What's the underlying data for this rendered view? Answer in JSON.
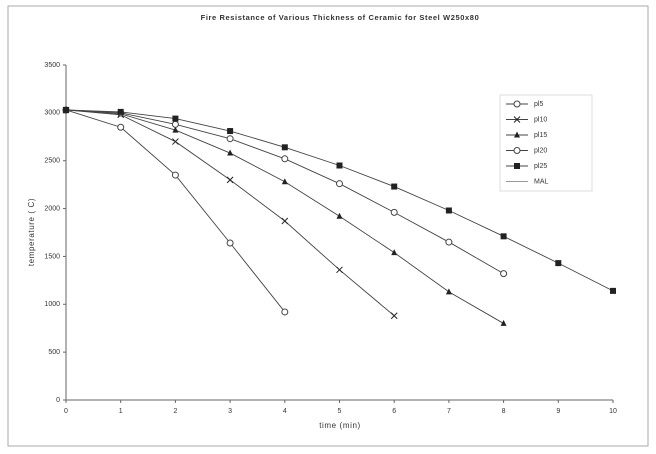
{
  "chart_data": {
    "type": "line",
    "title": "Fire Resistance of Various Thickness of Ceramic for Steel W250x80",
    "x_label": "time (min)",
    "y_label": "temperature ( C)",
    "x": [
      0,
      1,
      2,
      3,
      4,
      5,
      6,
      7,
      8,
      9,
      10
    ],
    "xlim": [
      0,
      10
    ],
    "xticks": [
      0,
      1,
      2,
      3,
      4,
      5,
      6,
      7,
      8,
      9,
      10
    ],
    "ylim": [
      0,
      3500
    ],
    "yticks": [
      0,
      500,
      1000,
      1500,
      2000,
      2500,
      3000,
      3500
    ],
    "grid": false,
    "legend": "upper right",
    "series": [
      {
        "name": "pl5",
        "color": "#444444",
        "marker": "circle",
        "values": [
          3030,
          2850,
          2350,
          1640,
          920,
          null,
          null,
          null,
          null,
          null,
          null
        ]
      },
      {
        "name": "pl10",
        "color": "#444444",
        "marker": "x",
        "values": [
          3030,
          2980,
          2700,
          2300,
          1870,
          1360,
          880,
          null,
          null,
          null,
          null
        ]
      },
      {
        "name": "pl15",
        "color": "#444444",
        "marker": "triangle",
        "values": [
          3030,
          2990,
          2820,
          2580,
          2280,
          1920,
          1540,
          1130,
          800,
          null,
          null
        ]
      },
      {
        "name": "pl20",
        "color": "#444444",
        "marker": "circle",
        "values": [
          3030,
          3000,
          2880,
          2730,
          2520,
          2260,
          1960,
          1650,
          1320,
          null,
          null
        ]
      },
      {
        "name": "pl25",
        "color": "#444444",
        "marker": "square",
        "values": [
          3030,
          3010,
          2940,
          2810,
          2640,
          2450,
          2230,
          1980,
          1710,
          1430,
          1140
        ]
      },
      {
        "name": "MAL",
        "color": "#999999",
        "marker": "none",
        "values": [
          null,
          null,
          null,
          null,
          null,
          null,
          null,
          null,
          null,
          null,
          null
        ]
      }
    ]
  }
}
